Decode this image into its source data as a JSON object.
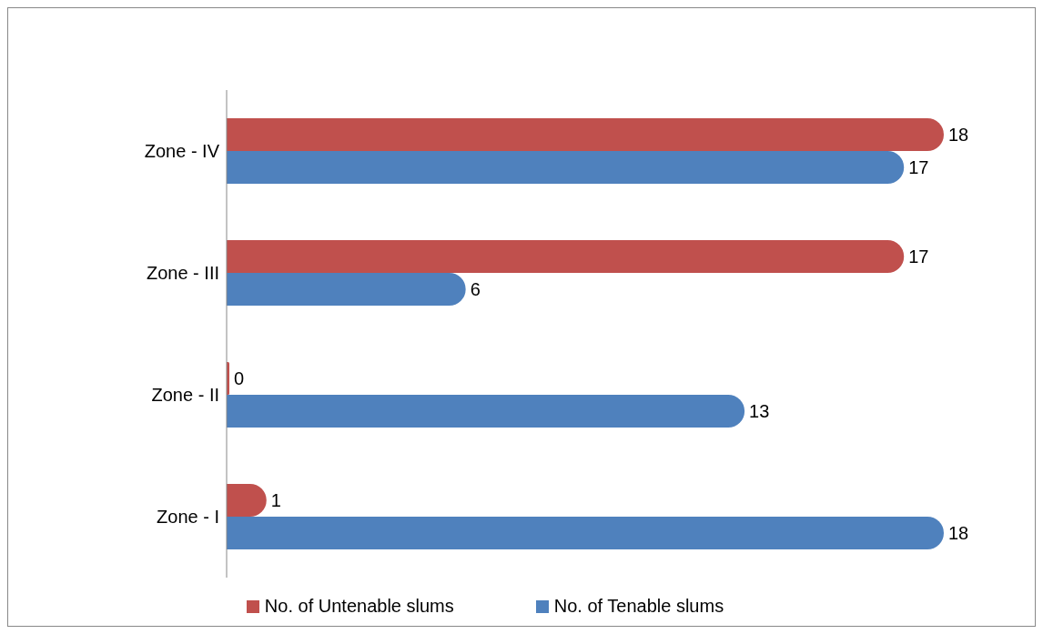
{
  "chart_data": {
    "type": "bar",
    "orientation": "horizontal",
    "categories": [
      "Zone - IV",
      "Zone - III",
      "Zone - II",
      "Zone - I"
    ],
    "series": [
      {
        "name": "No. of Untenable slums",
        "color": "#c0504d",
        "values": [
          18,
          17,
          0,
          1
        ]
      },
      {
        "name": "No. of Tenable slums",
        "color": "#4f81bd",
        "values": [
          17,
          6,
          13,
          18
        ]
      }
    ],
    "data_labels": true,
    "legend": "bottom",
    "grid": false
  }
}
